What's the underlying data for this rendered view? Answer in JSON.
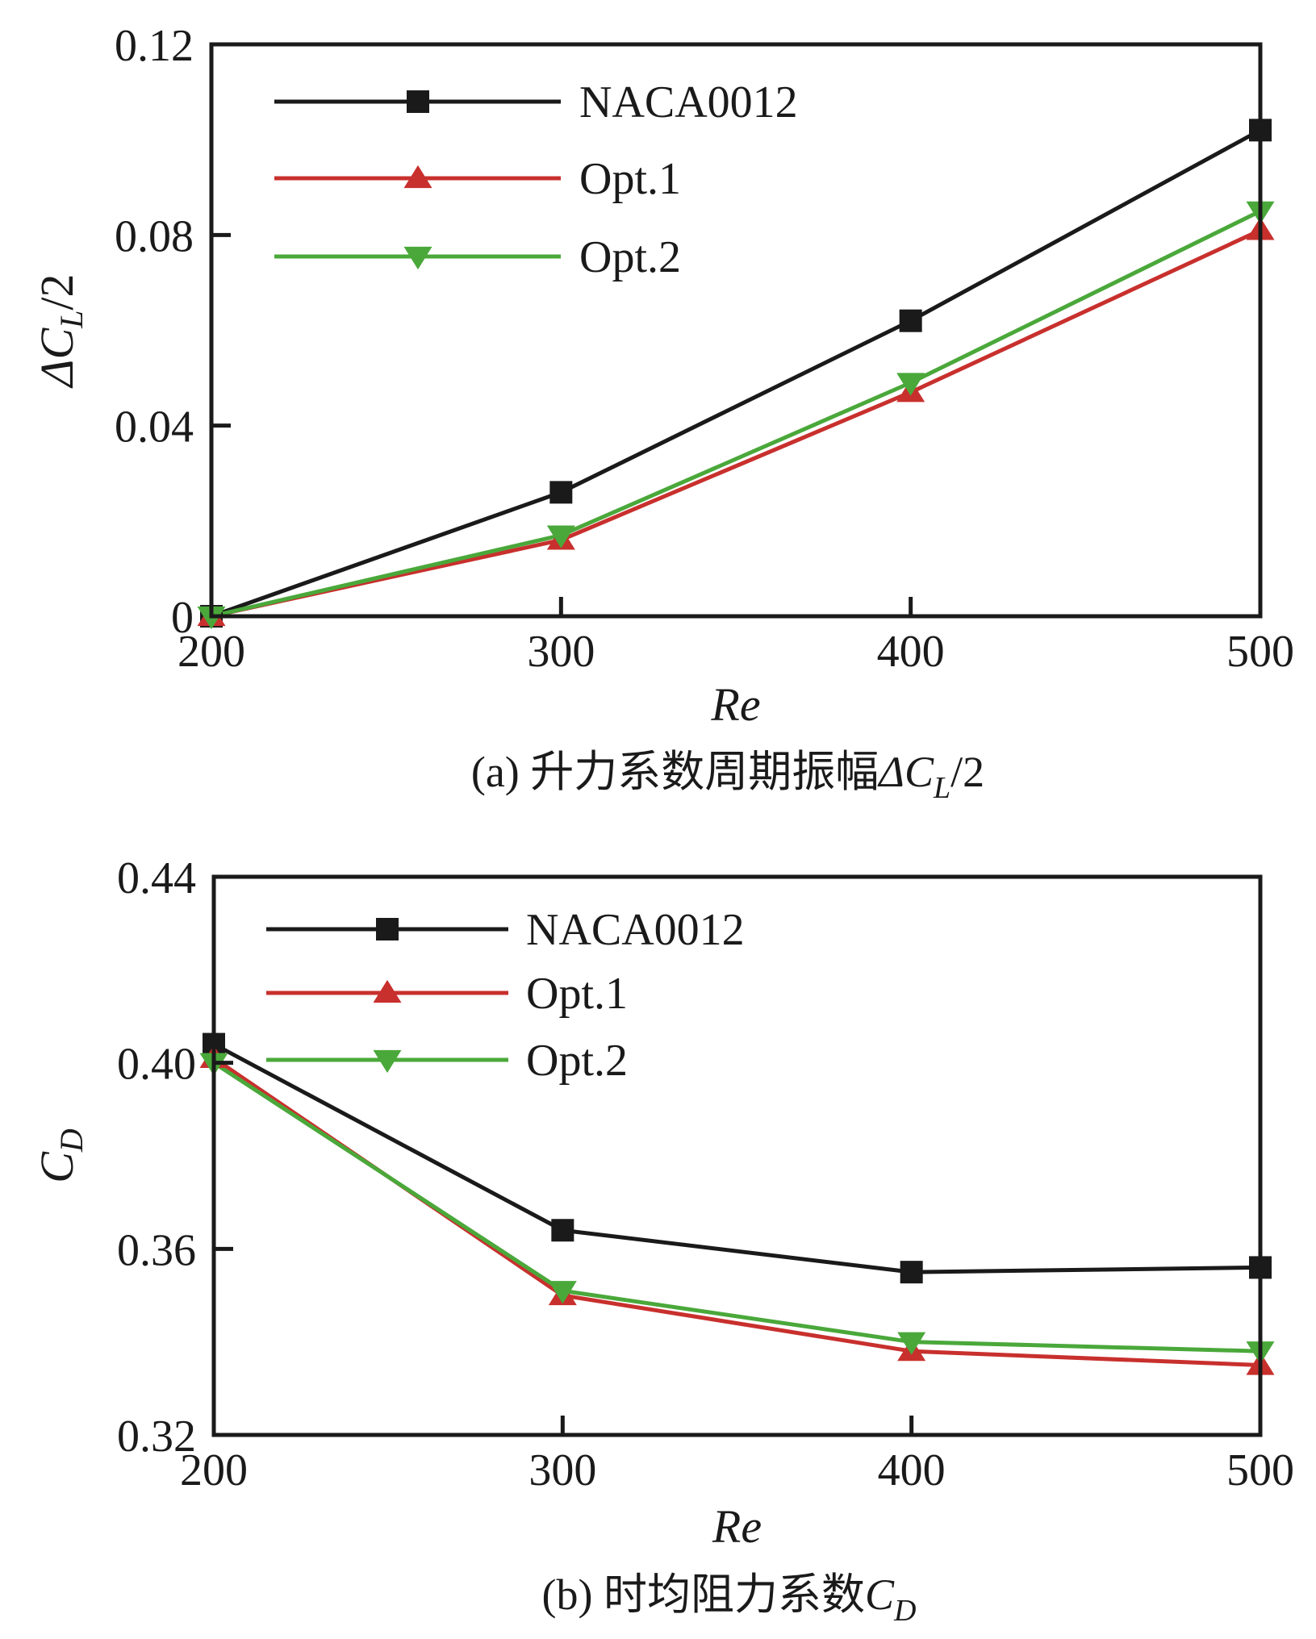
{
  "chart_data": [
    {
      "type": "line",
      "panel": "a",
      "caption": {
        "prefix": "(a) 升力系数周期振幅",
        "symbol": "ΔC",
        "subscript": "L",
        "suffix": "/2"
      },
      "xlabel": "Re",
      "ylabel": {
        "symbol": "ΔC",
        "subscript": "L",
        "suffix": "/2"
      },
      "x": [
        200,
        300,
        400,
        500
      ],
      "xticks": [
        "200",
        "300",
        "400",
        "500"
      ],
      "xlim": [
        200,
        500
      ],
      "ylim": [
        0,
        0.12
      ],
      "yticks": [
        0,
        0.04,
        0.08,
        0.12
      ],
      "ytick_labels": [
        "0",
        "0.04",
        "0.08",
        "0.12"
      ],
      "grid": false,
      "legend_position": "top-left",
      "series": [
        {
          "name": "NACA0012",
          "color": "#1a1a1a",
          "marker": "square",
          "values": [
            0.0,
            0.026,
            0.062,
            0.102
          ]
        },
        {
          "name": "Opt.1",
          "color": "#c8302d",
          "marker": "triangle-up",
          "values": [
            0.0,
            0.016,
            0.047,
            0.081
          ]
        },
        {
          "name": "Opt.2",
          "color": "#4aa83a",
          "marker": "triangle-down",
          "values": [
            0.0,
            0.017,
            0.049,
            0.085
          ]
        }
      ]
    },
    {
      "type": "line",
      "panel": "b",
      "caption": {
        "prefix": "(b) 时均阻力系数",
        "symbol": "C",
        "subscript": "D",
        "suffix": ""
      },
      "xlabel": "Re",
      "ylabel": {
        "symbol": "C",
        "subscript": "D",
        "suffix": ""
      },
      "x": [
        200,
        300,
        400,
        500
      ],
      "xticks": [
        "200",
        "300",
        "400",
        "500"
      ],
      "xlim": [
        200,
        500
      ],
      "ylim": [
        0.32,
        0.44
      ],
      "yticks": [
        0.32,
        0.36,
        0.4,
        0.44
      ],
      "ytick_labels": [
        "0.32",
        "0.36",
        "0.40",
        "0.44"
      ],
      "grid": false,
      "legend_position": "top-left",
      "series": [
        {
          "name": "NACA0012",
          "color": "#1a1a1a",
          "marker": "square",
          "values": [
            0.404,
            0.364,
            0.355,
            0.356
          ]
        },
        {
          "name": "Opt.1",
          "color": "#c8302d",
          "marker": "triangle-up",
          "values": [
            0.401,
            0.35,
            0.338,
            0.335
          ]
        },
        {
          "name": "Opt.2",
          "color": "#4aa83a",
          "marker": "triangle-down",
          "values": [
            0.4,
            0.351,
            0.34,
            0.338
          ]
        }
      ]
    }
  ]
}
